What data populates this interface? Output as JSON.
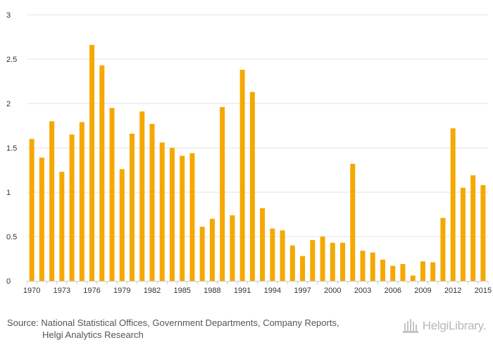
{
  "colors": {
    "bar": "#f5a800",
    "grid": "#e3e3e3",
    "axis": "#cccccc",
    "text": "#333333",
    "logo": "#b8b8b8"
  },
  "chart_data": {
    "type": "bar",
    "title": "",
    "xlabel": "",
    "ylabel": "",
    "ylim": [
      0,
      3
    ],
    "y_ticks": [
      "0",
      "0.5",
      "1",
      "1.5",
      "2",
      "2.5",
      "3"
    ],
    "y_tick_values": [
      0,
      0.5,
      1,
      1.5,
      2,
      2.5,
      3
    ],
    "x_tick_labels": [
      "1970",
      "1973",
      "1976",
      "1979",
      "1982",
      "1985",
      "1988",
      "1991",
      "1994",
      "1997",
      "2000",
      "2003",
      "2006",
      "2009",
      "2012",
      "2015"
    ],
    "categories": [
      "1970",
      "1971",
      "1972",
      "1973",
      "1974",
      "1975",
      "1976",
      "1977",
      "1978",
      "1979",
      "1980",
      "1981",
      "1982",
      "1983",
      "1984",
      "1985",
      "1986",
      "1987",
      "1988",
      "1989",
      "1990",
      "1991",
      "1992",
      "1993",
      "1994",
      "1995",
      "1996",
      "1997",
      "1998",
      "1999",
      "2000",
      "2001",
      "2002",
      "2003",
      "2004",
      "2005",
      "2006",
      "2007",
      "2008",
      "2009",
      "2010",
      "2011",
      "2012",
      "2013",
      "2014",
      "2015"
    ],
    "values": [
      1.6,
      1.39,
      1.8,
      1.23,
      1.65,
      1.79,
      2.66,
      2.43,
      1.95,
      1.26,
      1.66,
      1.91,
      1.77,
      1.56,
      1.5,
      1.41,
      1.44,
      0.61,
      0.7,
      1.96,
      0.74,
      2.38,
      2.13,
      0.82,
      0.59,
      0.57,
      0.4,
      0.28,
      0.46,
      0.5,
      0.43,
      0.43,
      1.32,
      0.34,
      0.32,
      0.24,
      0.17,
      0.19,
      0.06,
      0.22,
      0.21,
      0.71,
      1.72,
      1.05,
      1.19,
      1.08
    ],
    "grid": true,
    "legend": "none"
  },
  "footer": {
    "source_line1": "Source: National Statistical Offices, Government Departments, Company Reports,",
    "source_line2": "Helgi Analytics Research",
    "logo_text": "HelgiLibrary."
  }
}
